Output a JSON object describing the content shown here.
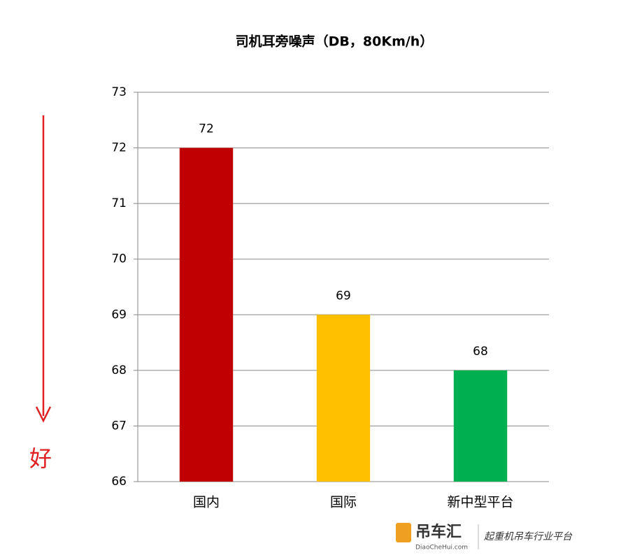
{
  "chart_data": {
    "type": "bar",
    "title": "司机耳旁噪声（DB，80Km/h）",
    "categories": [
      "国内",
      "国际",
      "新中型平台"
    ],
    "values": [
      72,
      69,
      68
    ],
    "colors": [
      "#c00000",
      "#ffc000",
      "#00b050"
    ],
    "ylim": [
      66,
      73
    ],
    "yticks": [
      66,
      67,
      68,
      69,
      70,
      71,
      72,
      73
    ],
    "grid": true,
    "annotation": "好"
  },
  "watermark": {
    "brand": "吊车汇",
    "site": "DiaoCheHui.com",
    "slogan": "起重机吊车行业平台"
  }
}
